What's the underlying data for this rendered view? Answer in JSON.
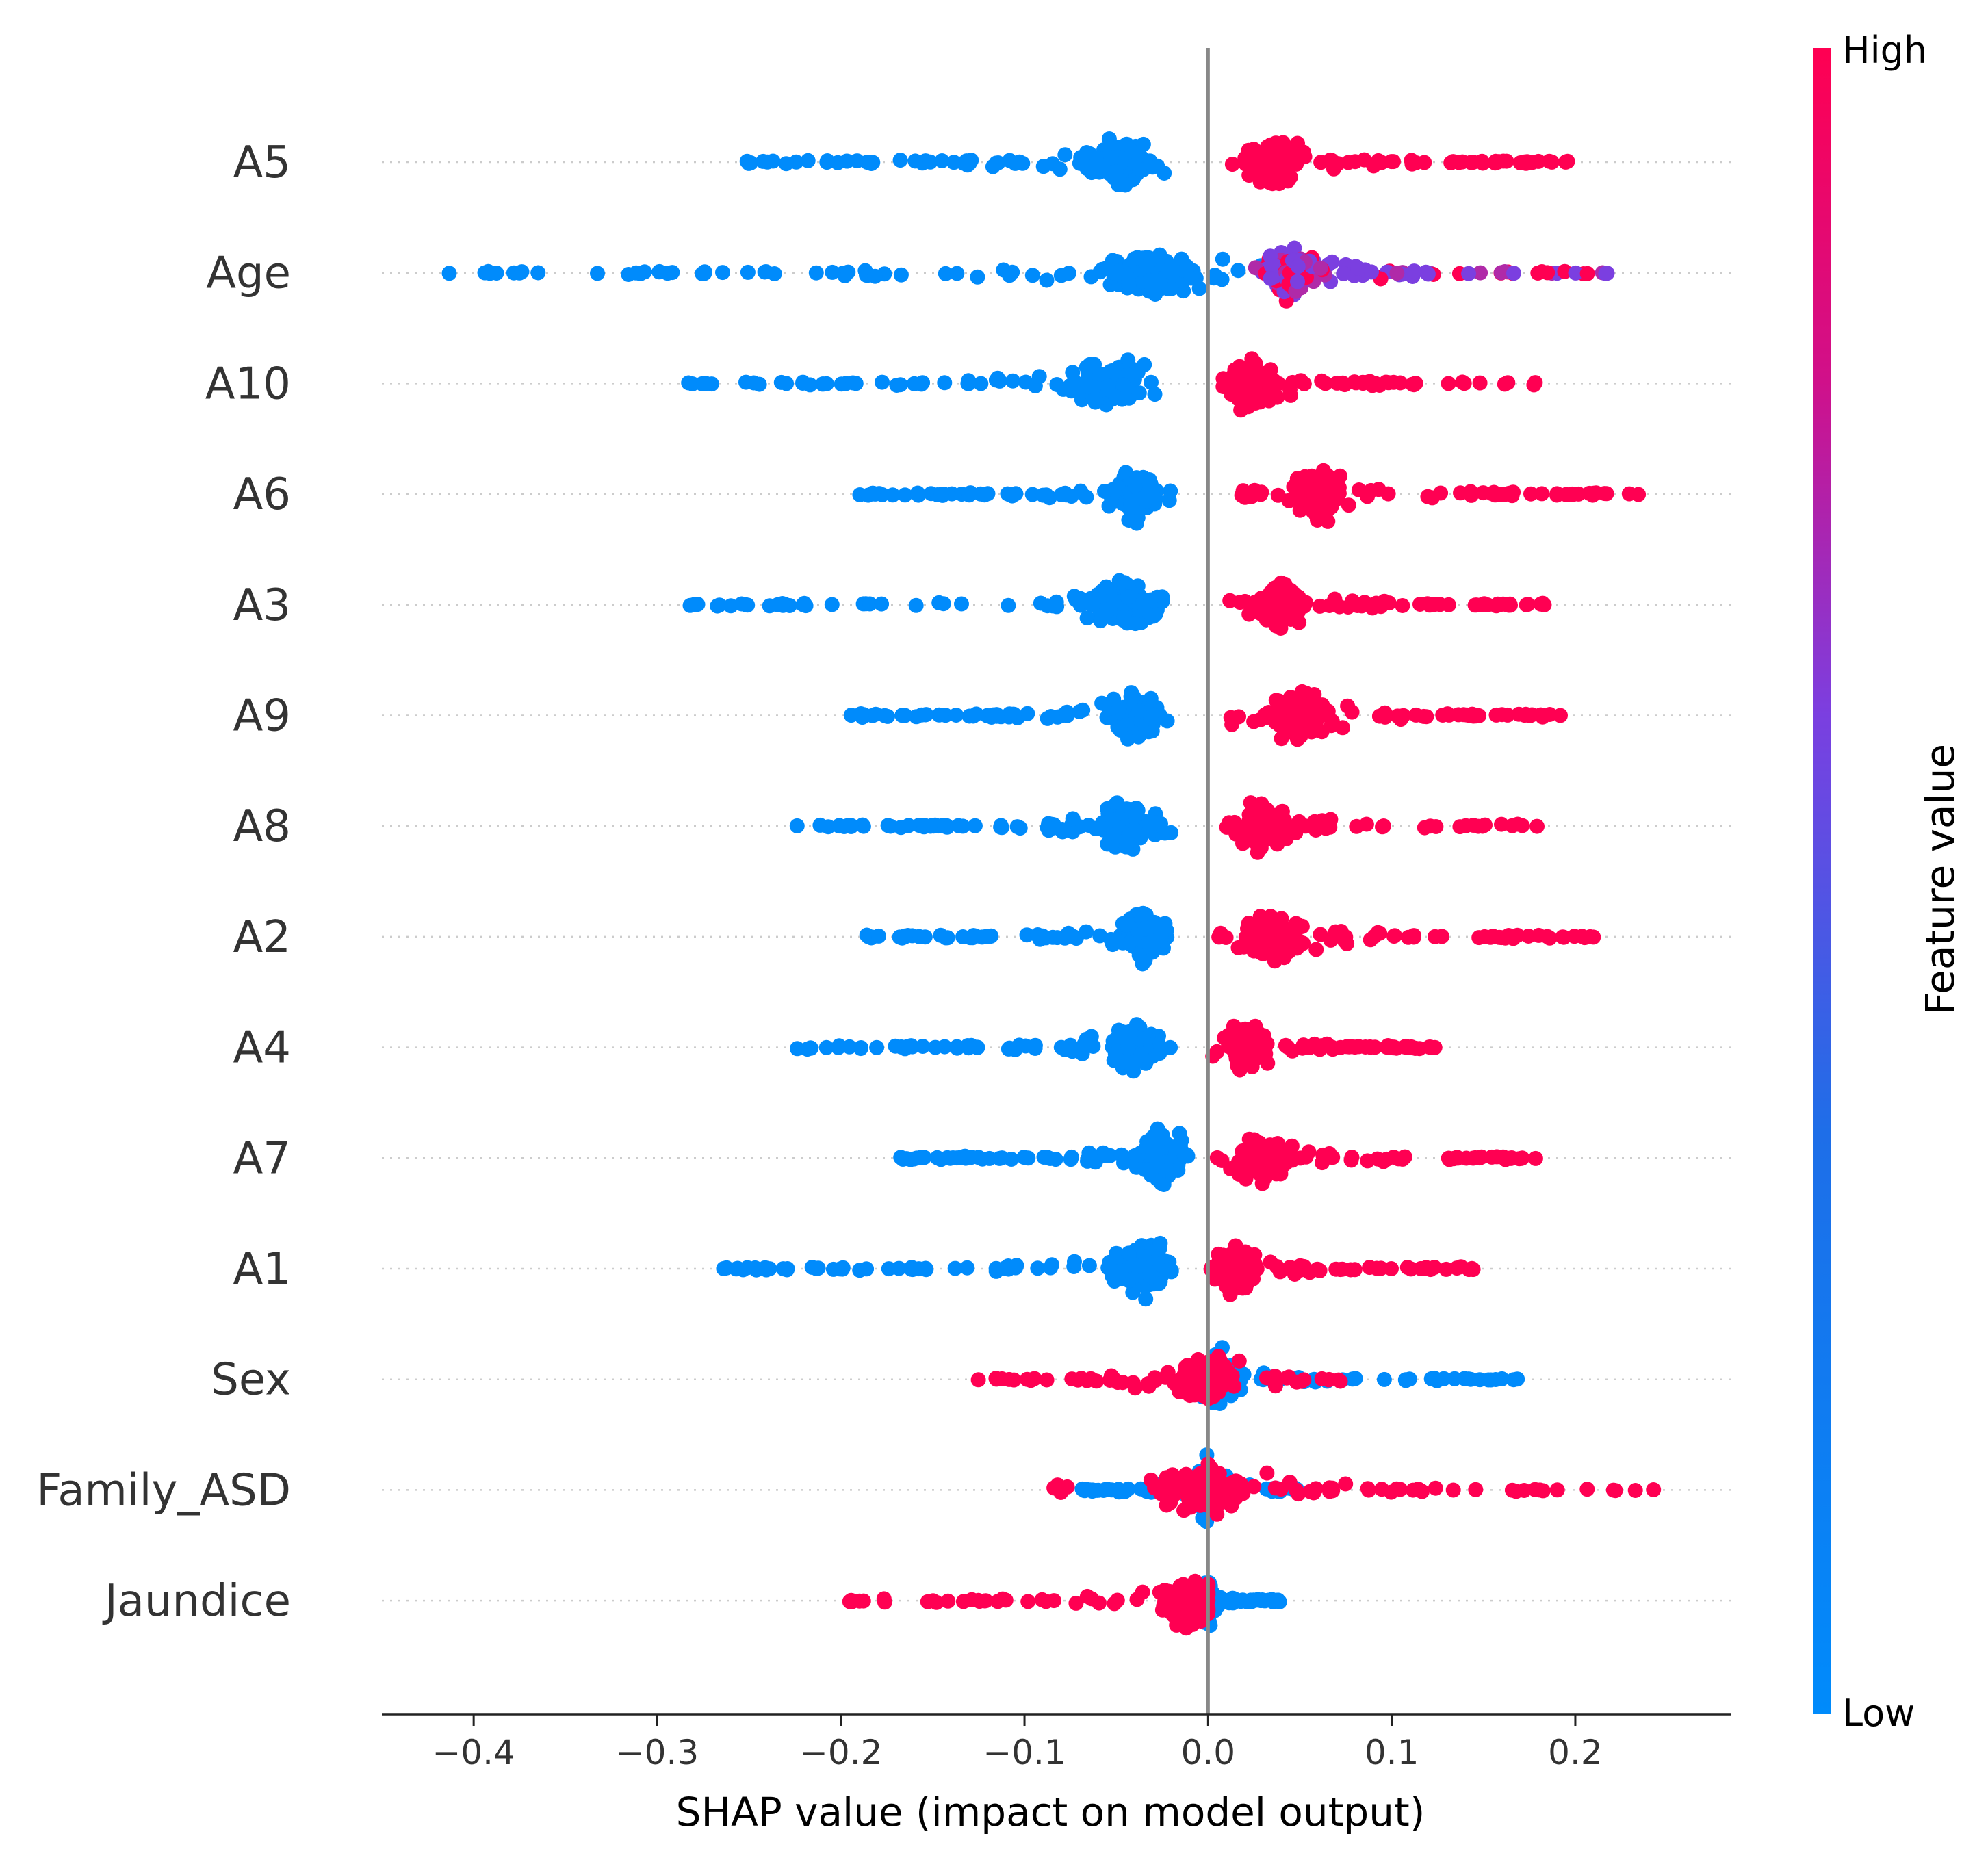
{
  "chart_data": {
    "type": "scatter",
    "subtype": "shap-beeswarm",
    "title": "",
    "xlabel": "SHAP value (impact on model output)",
    "ylabel": "",
    "xlim": [
      -0.45,
      0.285
    ],
    "xticks": [
      -0.4,
      -0.3,
      -0.2,
      -0.1,
      0.0,
      0.1,
      0.2
    ],
    "xtick_labels": [
      "−0.4",
      "−0.3",
      "−0.2",
      "−0.1",
      "0.0",
      "0.1",
      "0.2"
    ],
    "colorbar": {
      "title": "Feature value",
      "high_label": "High",
      "low_label": "Low",
      "high_color": "#ff0052",
      "mid_color": "#7b3fe0",
      "low_color": "#008bfb"
    },
    "features": [
      {
        "name": "A5",
        "low_min": -0.255,
        "low_max": -0.02,
        "low_peak": -0.048,
        "high_min": 0.01,
        "high_max": 0.2,
        "high_peak": 0.035
      },
      {
        "name": "Age",
        "low_min": -0.415,
        "low_max": 0.03,
        "low_peak": -0.03,
        "high_min": 0.025,
        "high_max": 0.225,
        "high_peak": 0.045,
        "mixed": true
      },
      {
        "name": "A10",
        "low_min": -0.29,
        "low_max": -0.025,
        "low_peak": -0.055,
        "high_min": 0.005,
        "high_max": 0.19,
        "high_peak": 0.025
      },
      {
        "name": "A6",
        "low_min": -0.19,
        "low_max": -0.02,
        "low_peak": -0.04,
        "high_min": 0.015,
        "high_max": 0.24,
        "high_peak": 0.06
      },
      {
        "name": "A3",
        "low_min": -0.29,
        "low_max": -0.025,
        "low_peak": -0.045,
        "high_min": 0.01,
        "high_max": 0.185,
        "high_peak": 0.04
      },
      {
        "name": "A9",
        "low_min": -0.195,
        "low_max": -0.02,
        "low_peak": -0.04,
        "high_min": 0.01,
        "high_max": 0.2,
        "high_peak": 0.05
      },
      {
        "name": "A8",
        "low_min": -0.225,
        "low_max": -0.02,
        "low_peak": -0.045,
        "high_min": 0.005,
        "high_max": 0.18,
        "high_peak": 0.03
      },
      {
        "name": "A2",
        "low_min": -0.19,
        "low_max": -0.02,
        "low_peak": -0.035,
        "high_min": 0.005,
        "high_max": 0.21,
        "high_peak": 0.035
      },
      {
        "name": "A4",
        "low_min": -0.225,
        "low_max": -0.02,
        "low_peak": -0.04,
        "high_min": 0.0,
        "high_max": 0.13,
        "high_peak": 0.02
      },
      {
        "name": "A7",
        "low_min": -0.17,
        "low_max": -0.005,
        "low_peak": -0.025,
        "high_min": 0.005,
        "high_max": 0.185,
        "high_peak": 0.03
      },
      {
        "name": "A1",
        "low_min": -0.27,
        "low_max": -0.02,
        "low_peak": -0.035,
        "high_min": 0.0,
        "high_max": 0.15,
        "high_peak": 0.015
      },
      {
        "name": "Sex",
        "low_min": -0.005,
        "low_max": 0.17,
        "low_peak": 0.005,
        "high_min": -0.13,
        "high_max": 0.075,
        "high_peak": 0.0
      },
      {
        "name": "Family_ASD",
        "low_min": -0.07,
        "low_max": 0.05,
        "low_peak": 0.0,
        "high_min": -0.085,
        "high_max": 0.25,
        "high_peak": 0.0
      },
      {
        "name": "Jaundice",
        "low_min": -0.005,
        "low_max": 0.04,
        "low_peak": 0.0,
        "high_min": -0.2,
        "high_max": 0.0,
        "high_peak": -0.01
      }
    ]
  }
}
